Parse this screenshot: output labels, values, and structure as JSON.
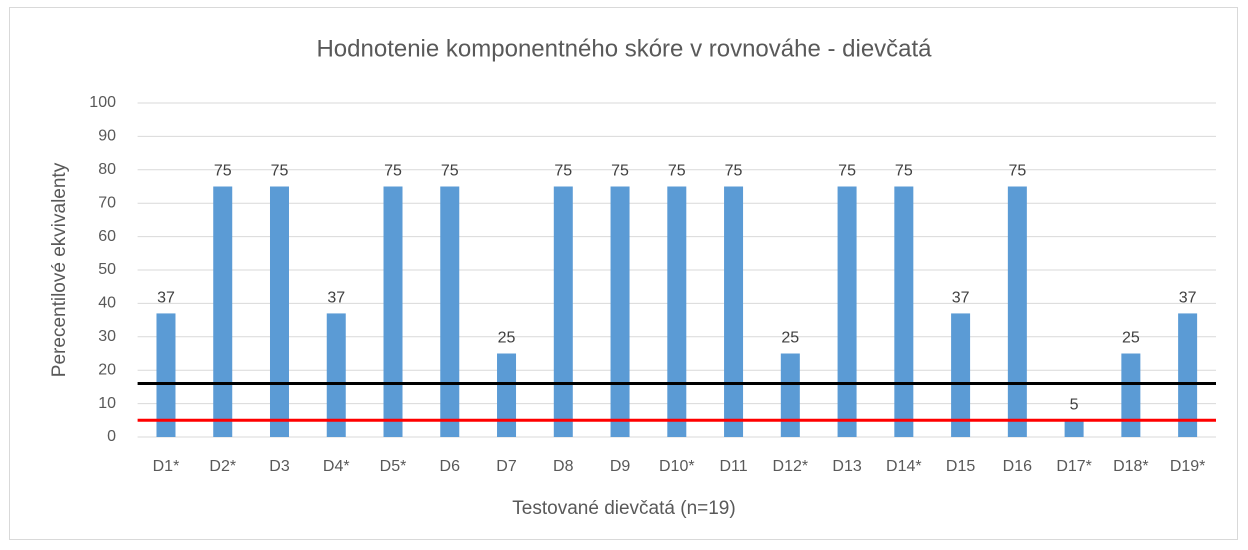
{
  "chart_data": {
    "type": "bar",
    "title": "Hodnotenie komponentného skóre v rovnováhe - dievčatá",
    "x_label": "Testované dievčatá  (n=19)",
    "y_label": "Perecentilové ekvivalenty",
    "categories": [
      "D1*",
      "D2*",
      "D3",
      "D4*",
      "D5*",
      "D6",
      "D7",
      "D8",
      "D9",
      "D10*",
      "D11",
      "D12*",
      "D13",
      "D14*",
      "D15",
      "D16",
      "D17*",
      "D18*",
      "D19*"
    ],
    "values": [
      37,
      75,
      75,
      37,
      75,
      75,
      25,
      75,
      75,
      75,
      75,
      25,
      75,
      75,
      37,
      75,
      5,
      25,
      37
    ],
    "color": "#5b9bd5",
    "ylim": [
      0,
      100
    ],
    "yticks": [
      0,
      10,
      20,
      30,
      40,
      50,
      60,
      70,
      80,
      90,
      100
    ],
    "grid": true,
    "reference_lines": [
      {
        "value": 16,
        "color": "#000000"
      },
      {
        "value": 5,
        "color": "#ff0000"
      }
    ]
  }
}
